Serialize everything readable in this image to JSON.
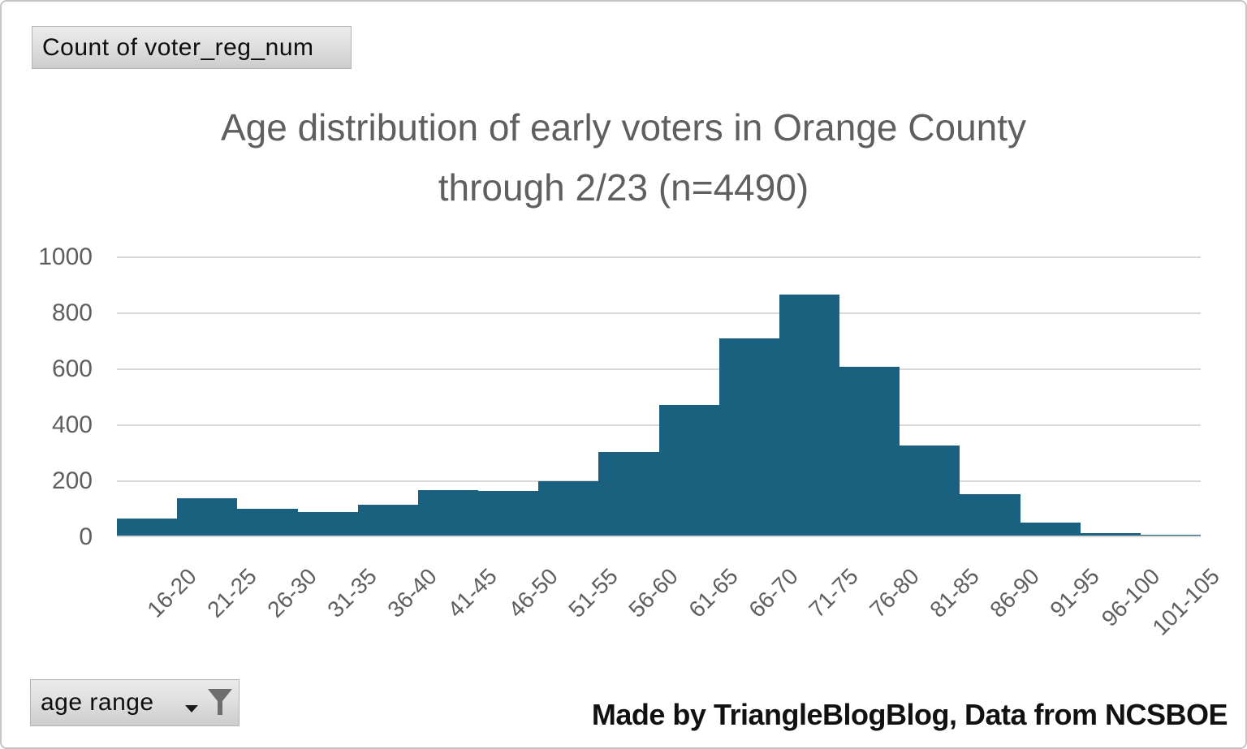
{
  "value_field_button": {
    "label": "Count of voter_reg_num"
  },
  "axis_field_button": {
    "label": "age range"
  },
  "credit_text": "Made by TriangleBlogBlog, Data from NCSBOE",
  "chart_data": {
    "type": "bar",
    "subtype": "histogram-pivotchart",
    "title": "Age distribution of early voters in Orange County through 2/23 (n=4490)",
    "title_lines": [
      "Age distribution of early voters in Orange County",
      "through 2/23 (n=4490)"
    ],
    "n_total": 4490,
    "series_name": "Count of voter_reg_num",
    "x_field": "age range",
    "categories": [
      "16-20",
      "21-25",
      "26-30",
      "31-35",
      "36-40",
      "41-45",
      "46-50",
      "51-55",
      "56-60",
      "61-65",
      "66-70",
      "71-75",
      "76-80",
      "81-85",
      "86-90",
      "91-95",
      "96-100",
      "101-105"
    ],
    "values": [
      62,
      135,
      95,
      85,
      112,
      162,
      160,
      195,
      300,
      470,
      710,
      865,
      608,
      325,
      148,
      48,
      8,
      2
    ],
    "xlabel": "",
    "ylabel": "",
    "ylim": [
      0,
      1000
    ],
    "yticks": [
      0,
      200,
      400,
      600,
      800,
      1000
    ],
    "grid": "horizontal",
    "legend_position": "none",
    "bar_gap_percent": 0,
    "x_tick_rotation_deg": -45,
    "colors": {
      "bar": "#1a6180",
      "gridline": "#d9d9d9",
      "axis_text": "#5f5f5f",
      "title_text": "#5f5f5f",
      "credit_text": "#111111"
    }
  }
}
